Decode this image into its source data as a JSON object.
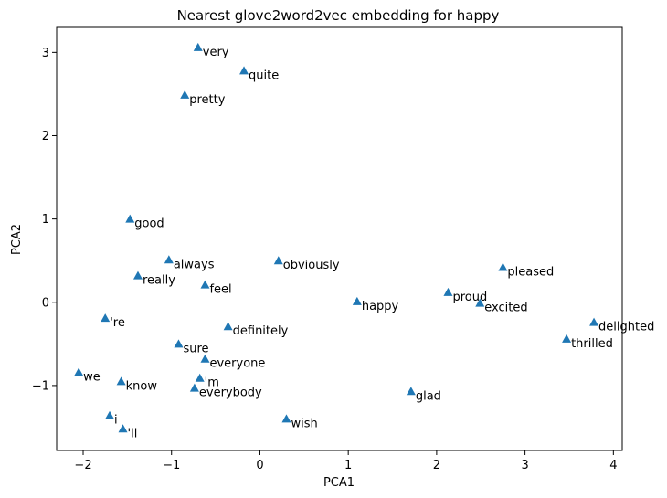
{
  "chart_data": {
    "type": "scatter",
    "title": "Nearest glove2word2vec embedding for happy",
    "xlabel": "PCA1",
    "ylabel": "PCA2",
    "xlim": [
      -2.3,
      4.1
    ],
    "ylim": [
      -1.78,
      3.3
    ],
    "xticks": [
      -2,
      -1,
      0,
      1,
      2,
      3,
      4
    ],
    "yticks": [
      -1,
      0,
      1,
      2,
      3
    ],
    "marker": "triangle",
    "marker_color": "#1f77b4",
    "grid": false,
    "points": [
      {
        "label": "very",
        "x": -0.7,
        "y": 3.06
      },
      {
        "label": "quite",
        "x": -0.18,
        "y": 2.78
      },
      {
        "label": "pretty",
        "x": -0.85,
        "y": 2.49
      },
      {
        "label": "good",
        "x": -1.47,
        "y": 1.0
      },
      {
        "label": "always",
        "x": -1.03,
        "y": 0.51
      },
      {
        "label": "obviously",
        "x": 0.21,
        "y": 0.5
      },
      {
        "label": "really",
        "x": -1.38,
        "y": 0.32
      },
      {
        "label": "feel",
        "x": -0.62,
        "y": 0.21
      },
      {
        "label": "happy",
        "x": 1.1,
        "y": 0.01
      },
      {
        "label": "proud",
        "x": 2.13,
        "y": 0.12
      },
      {
        "label": "excited",
        "x": 2.49,
        "y": -0.01
      },
      {
        "label": "pleased",
        "x": 2.75,
        "y": 0.42
      },
      {
        "label": "delighted",
        "x": 3.78,
        "y": -0.24
      },
      {
        "label": "thrilled",
        "x": 3.47,
        "y": -0.44
      },
      {
        "label": "'re",
        "x": -1.75,
        "y": -0.19
      },
      {
        "label": "definitely",
        "x": -0.36,
        "y": -0.29
      },
      {
        "label": "sure",
        "x": -0.92,
        "y": -0.5
      },
      {
        "label": "everyone",
        "x": -0.62,
        "y": -0.68
      },
      {
        "label": "we",
        "x": -2.05,
        "y": -0.84
      },
      {
        "label": "know",
        "x": -1.57,
        "y": -0.95
      },
      {
        "label": "'m",
        "x": -0.68,
        "y": -0.91
      },
      {
        "label": "everybody",
        "x": -0.74,
        "y": -1.03
      },
      {
        "label": "glad",
        "x": 1.71,
        "y": -1.07
      },
      {
        "label": "i",
        "x": -1.7,
        "y": -1.36
      },
      {
        "label": "wish",
        "x": 0.3,
        "y": -1.4
      },
      {
        "label": "'ll",
        "x": -1.55,
        "y": -1.52
      }
    ]
  }
}
